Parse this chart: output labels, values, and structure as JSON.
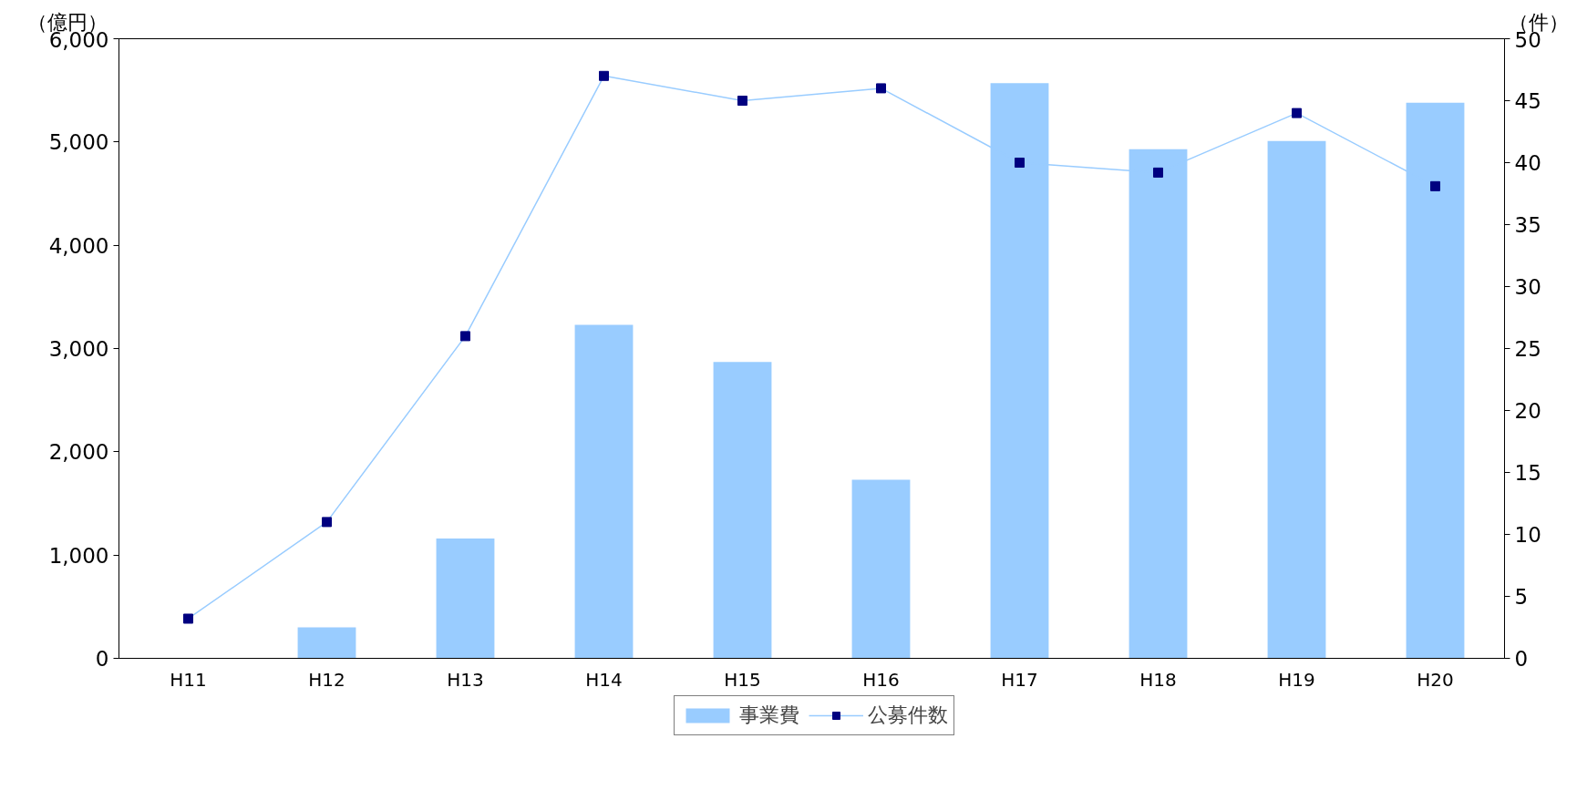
{
  "chart_data": {
    "type": "bar",
    "categories": [
      "H11",
      "H12",
      "H13",
      "H14",
      "H15",
      "H16",
      "H17",
      "H18",
      "H19",
      "H20"
    ],
    "ylabel": "（億円）",
    "y2label": "（件）",
    "series": [
      {
        "name": "事業費",
        "color": "#99ccff",
        "values": [
          null,
          300,
          1160,
          3230,
          2870,
          1730,
          5570,
          4930,
          5010,
          5380
        ]
      },
      {
        "name": "公募件数",
        "type": "line",
        "axis": "y2",
        "color": "#99ccff",
        "colors": [
          "#000080",
          "#000080",
          "#000080",
          "#000080",
          "#000080",
          "#000080",
          "#000080",
          "#000080",
          "#000080",
          "#000080"
        ],
        "marker": "square",
        "values": [
          3.2,
          11,
          26,
          47,
          45,
          46,
          40,
          39.2,
          44,
          38.1
        ]
      }
    ],
    "ylim": [
      0,
      6000
    ],
    "yticks": [
      {
        "value": 0,
        "label": "0"
      },
      {
        "value": 1000,
        "label": "1,000"
      },
      {
        "value": 2000,
        "label": "2,000"
      },
      {
        "value": 3000,
        "label": "3,000"
      },
      {
        "value": 4000,
        "label": "4,000"
      },
      {
        "value": 5000,
        "label": "5,000"
      },
      {
        "value": 6000,
        "label": "6,000"
      }
    ],
    "y2lim": [
      0,
      50
    ],
    "y2ticks": [
      0,
      5,
      10,
      15,
      20,
      25,
      30,
      35,
      40,
      45,
      50
    ],
    "grid": false,
    "legend": "bottom"
  }
}
